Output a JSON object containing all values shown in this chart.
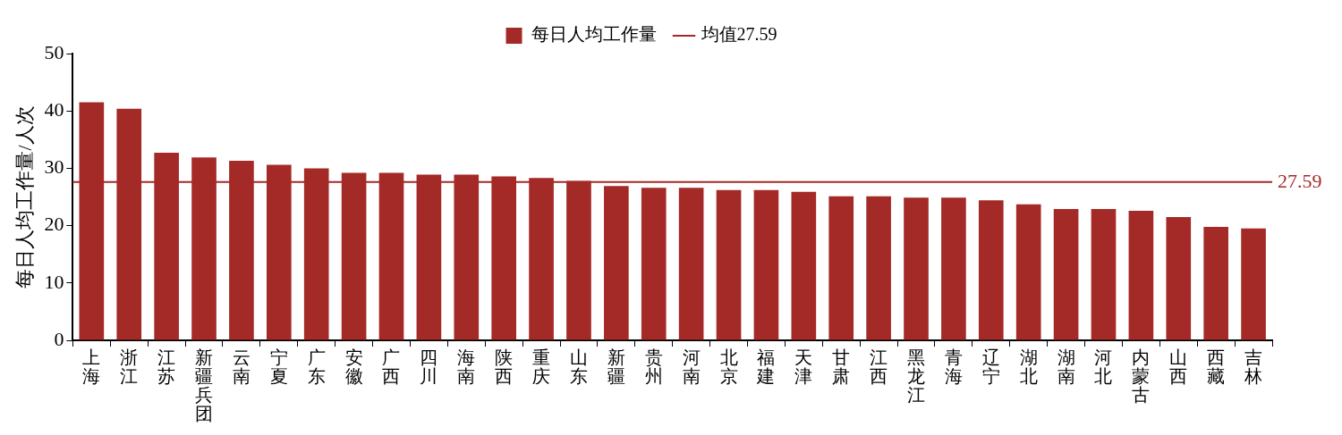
{
  "chart_data": {
    "type": "bar",
    "ylabel": "每日人均工作量/人次",
    "categories": [
      "上海",
      "浙江",
      "江苏",
      "新疆兵团",
      "云南",
      "宁夏",
      "广东",
      "安徽",
      "广西",
      "四川",
      "海南",
      "陕西",
      "重庆",
      "山东",
      "新疆",
      "贵州",
      "河南",
      "北京",
      "福建",
      "天津",
      "甘肃",
      "江西",
      "黑龙江",
      "青海",
      "辽宁",
      "湖北",
      "湖南",
      "河北",
      "内蒙古",
      "山西",
      "西藏",
      "吉林"
    ],
    "series": [
      {
        "name": "每日人均工作量",
        "color": "#a42a27",
        "values": [
          41.5,
          40.4,
          32.7,
          31.9,
          31.3,
          30.6,
          30.0,
          29.2,
          29.2,
          28.9,
          28.9,
          28.6,
          28.3,
          27.8,
          26.9,
          26.6,
          26.6,
          26.2,
          26.2,
          25.9,
          25.1,
          25.1,
          24.9,
          24.9,
          24.4,
          23.7,
          22.9,
          22.9,
          22.6,
          21.5,
          19.8,
          19.5
        ]
      }
    ],
    "ref_lines": [
      {
        "axis": "y",
        "value": 27.59,
        "label": "均值27.59",
        "color": "#a42a27",
        "line_style": "solid"
      }
    ],
    "annotations": [
      "27.59"
    ],
    "ylim": [
      0,
      50
    ],
    "yticks": [
      0,
      10,
      20,
      30,
      40,
      50
    ],
    "grid": false,
    "legend": "top"
  }
}
